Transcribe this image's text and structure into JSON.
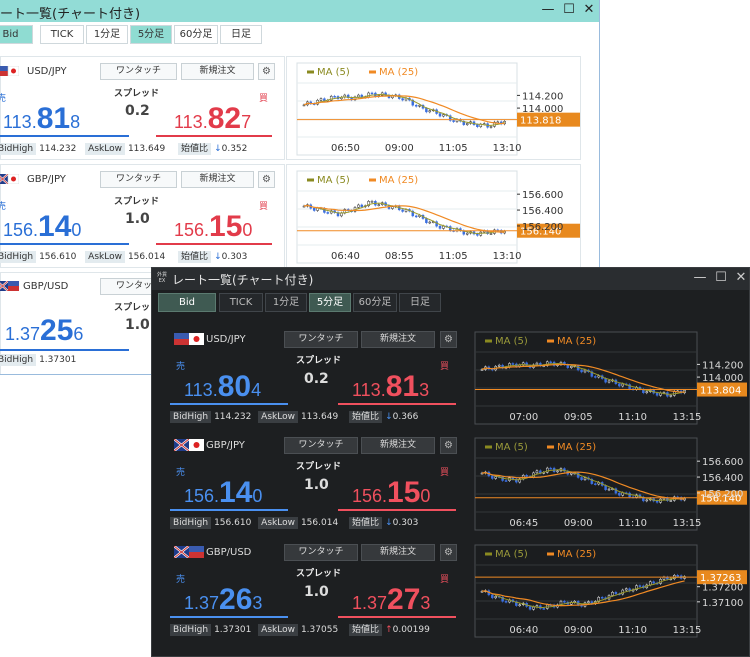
{
  "light": {
    "title": "ート一覧(チャート付き)",
    "tabs": [
      {
        "label": "Bid",
        "active": true
      },
      {
        "label": "TICK",
        "active": false
      },
      {
        "label": "1分足",
        "active": false
      },
      {
        "label": "5分足",
        "active": true
      },
      {
        "label": "60分足",
        "active": false
      },
      {
        "label": "日足",
        "active": false
      }
    ],
    "rows": [
      {
        "pair": "USD/JPY",
        "flag_icon": "us-jp-flag-icon",
        "oneclick": "ワンタッチ",
        "new_order": "新規注文",
        "sell_label": "売",
        "buy_label": "買",
        "spread_label": "スプレッド",
        "spread": "0.2",
        "bid_pre": "113.",
        "bid_big": "81",
        "bid_small": "8",
        "ask_pre": "113.",
        "ask_big": "82",
        "ask_small": "7",
        "high_label": "BidHigh",
        "high": "114.232",
        "low_label": "AskLow",
        "low": "113.649",
        "ratio_label": "始値比",
        "ratio_arrow": "↓",
        "ratio": "0.352",
        "chart": {
          "ma5": "MA (5)",
          "ma25": "MA (25)",
          "y_ticks": [
            "114.200",
            "114.000"
          ],
          "x_ticks": [
            "06:50",
            "09:00",
            "11:05",
            "13:10"
          ],
          "current": "113.818",
          "levels": [
            114.05,
            114.12,
            114.18,
            114.16,
            114.22,
            114.2,
            114.15,
            114.0,
            113.92,
            113.8,
            113.75,
            113.72,
            113.8
          ]
        }
      },
      {
        "pair": "GBP/JPY",
        "flag_icon": "gb-jp-flag-icon",
        "oneclick": "ワンタッチ",
        "new_order": "新規注文",
        "sell_label": "売",
        "buy_label": "買",
        "spread_label": "スプレッド",
        "spread": "1.0",
        "bid_pre": "156.",
        "bid_big": "14",
        "bid_small": "0",
        "ask_pre": "156.",
        "ask_big": "15",
        "ask_small": "0",
        "high_label": "BidHigh",
        "high": "156.610",
        "low_label": "AskLow",
        "low": "156.014",
        "ratio_label": "始値比",
        "ratio_arrow": "↓",
        "ratio": "0.303",
        "chart": {
          "ma5": "MA (5)",
          "ma25": "MA (25)",
          "y_ticks": [
            "156.600",
            "156.400",
            "156.200"
          ],
          "x_ticks": [
            "06:40",
            "08:55",
            "11:05",
            "13:10"
          ],
          "current": "156.140",
          "levels": [
            156.45,
            156.4,
            156.35,
            156.42,
            156.5,
            156.45,
            156.4,
            156.3,
            156.2,
            156.15,
            156.1,
            156.12,
            156.14
          ]
        }
      },
      {
        "pair": "GBP/USD",
        "flag_icon": "gb-us-flag-icon",
        "oneclick": "ワンタッチ",
        "spread_label": "スプレッ",
        "spread": "1.0",
        "bid_pre": "1.37",
        "bid_big": "25",
        "bid_small": "6",
        "high_label": "BidHigh",
        "high": "1.37301"
      }
    ]
  },
  "dark": {
    "logo_text": "外貨EX",
    "title": "レート一覧(チャート付き)",
    "tabs": [
      {
        "label": "Bid",
        "active": true
      },
      {
        "label": "TICK",
        "active": false
      },
      {
        "label": "1分足",
        "active": false
      },
      {
        "label": "5分足",
        "active": true
      },
      {
        "label": "60分足",
        "active": false
      },
      {
        "label": "日足",
        "active": false
      }
    ],
    "rows": [
      {
        "pair": "USD/JPY",
        "flag_icon": "us-jp-flag-icon",
        "oneclick": "ワンタッチ",
        "new_order": "新規注文",
        "sell_label": "売",
        "buy_label": "買",
        "spread_label": "スプレッド",
        "spread": "0.2",
        "bid_pre": "113.",
        "bid_big": "80",
        "bid_small": "4",
        "ask_pre": "113.",
        "ask_big": "81",
        "ask_small": "3",
        "high_label": "BidHigh",
        "high": "114.232",
        "low_label": "AskLow",
        "low": "113.649",
        "ratio_label": "始値比",
        "ratio_arrow": "↓",
        "ratio": "0.366",
        "chart": {
          "ma5": "MA (5)",
          "ma25": "MA (25)",
          "y_ticks": [
            "114.200",
            "114.000"
          ],
          "x_ticks": [
            "07:00",
            "09:05",
            "11:10",
            "13:15"
          ],
          "current": "113.804",
          "levels": [
            114.12,
            114.16,
            114.2,
            114.18,
            114.22,
            114.19,
            114.1,
            113.98,
            113.9,
            113.82,
            113.76,
            113.72,
            113.8
          ]
        }
      },
      {
        "pair": "GBP/JPY",
        "flag_icon": "gb-jp-flag-icon",
        "oneclick": "ワンタッチ",
        "new_order": "新規注文",
        "sell_label": "売",
        "buy_label": "買",
        "spread_label": "スプレッド",
        "spread": "1.0",
        "bid_pre": "156.",
        "bid_big": "14",
        "bid_small": "0",
        "ask_pre": "156.",
        "ask_big": "15",
        "ask_small": "0",
        "high_label": "BidHigh",
        "high": "156.610",
        "low_label": "AskLow",
        "low": "156.014",
        "ratio_label": "始値比",
        "ratio_arrow": "↓",
        "ratio": "0.303",
        "chart": {
          "ma5": "MA (5)",
          "ma25": "MA (25)",
          "y_ticks": [
            "156.600",
            "156.400",
            "156.200"
          ],
          "x_ticks": [
            "06:45",
            "09:00",
            "11:10",
            "13:15"
          ],
          "current": "156.140",
          "levels": [
            156.45,
            156.38,
            156.36,
            156.44,
            156.5,
            156.47,
            156.38,
            156.3,
            156.2,
            156.16,
            156.1,
            156.12,
            156.14
          ]
        }
      },
      {
        "pair": "GBP/USD",
        "flag_icon": "gb-us-flag-icon",
        "oneclick": "ワンタッチ",
        "new_order": "新規注文",
        "sell_label": "売",
        "buy_label": "買",
        "spread_label": "スプレッド",
        "spread": "1.0",
        "bid_pre": "1.37",
        "bid_big": "26",
        "bid_small": "3",
        "ask_pre": "1.37",
        "ask_big": "27",
        "ask_small": "3",
        "high_label": "BidHigh",
        "high": "1.37301",
        "low_label": "AskLow",
        "low": "1.37055",
        "ratio_label": "始値比",
        "ratio_arrow": "↑",
        "ratio": "0.00199",
        "chart": {
          "ma5": "MA (5)",
          "ma25": "MA (25)",
          "y_ticks": [
            "1.37200",
            "1.37100"
          ],
          "x_ticks": [
            "06:40",
            "09:00",
            "11:10",
            "13:15"
          ],
          "current": "1.37263",
          "levels": [
            1.3717,
            1.3712,
            1.3709,
            1.3706,
            1.3707,
            1.371,
            1.3708,
            1.3712,
            1.3716,
            1.3719,
            1.3722,
            1.3726,
            1.3727
          ]
        }
      }
    ]
  }
}
